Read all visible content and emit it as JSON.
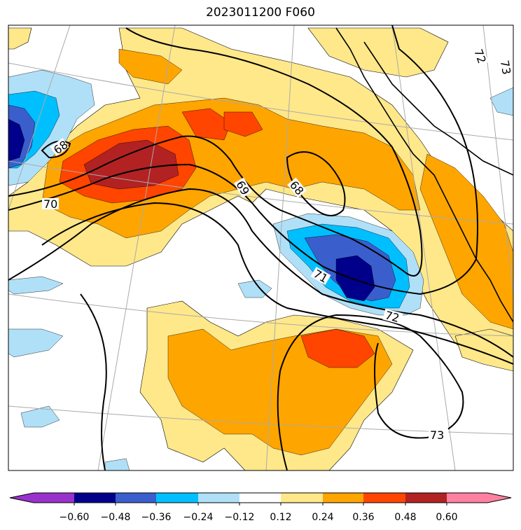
{
  "title": "2023011200 F060",
  "colors": {
    "neg_060": "#9932cc",
    "neg_048": "#00008b",
    "neg_036": "#3a5fcd",
    "neg_024": "#00bfff",
    "neg_012": "#b0e0f8",
    "zero": "#ffffff",
    "pos_012": "#ffe88a",
    "pos_024": "#ffa500",
    "pos_036": "#ff4500",
    "pos_048": "#b22222",
    "pos_060": "#ff80a0"
  },
  "colorbar": {
    "ticks": [
      "−0.60",
      "−0.48",
      "−0.36",
      "−0.24",
      "−0.12",
      "0.12",
      "0.24",
      "0.36",
      "0.48",
      "0.60"
    ]
  },
  "contours": {
    "labels": [
      "68",
      "70",
      "69",
      "68",
      "71",
      "72",
      "73",
      "72",
      "73"
    ]
  }
}
